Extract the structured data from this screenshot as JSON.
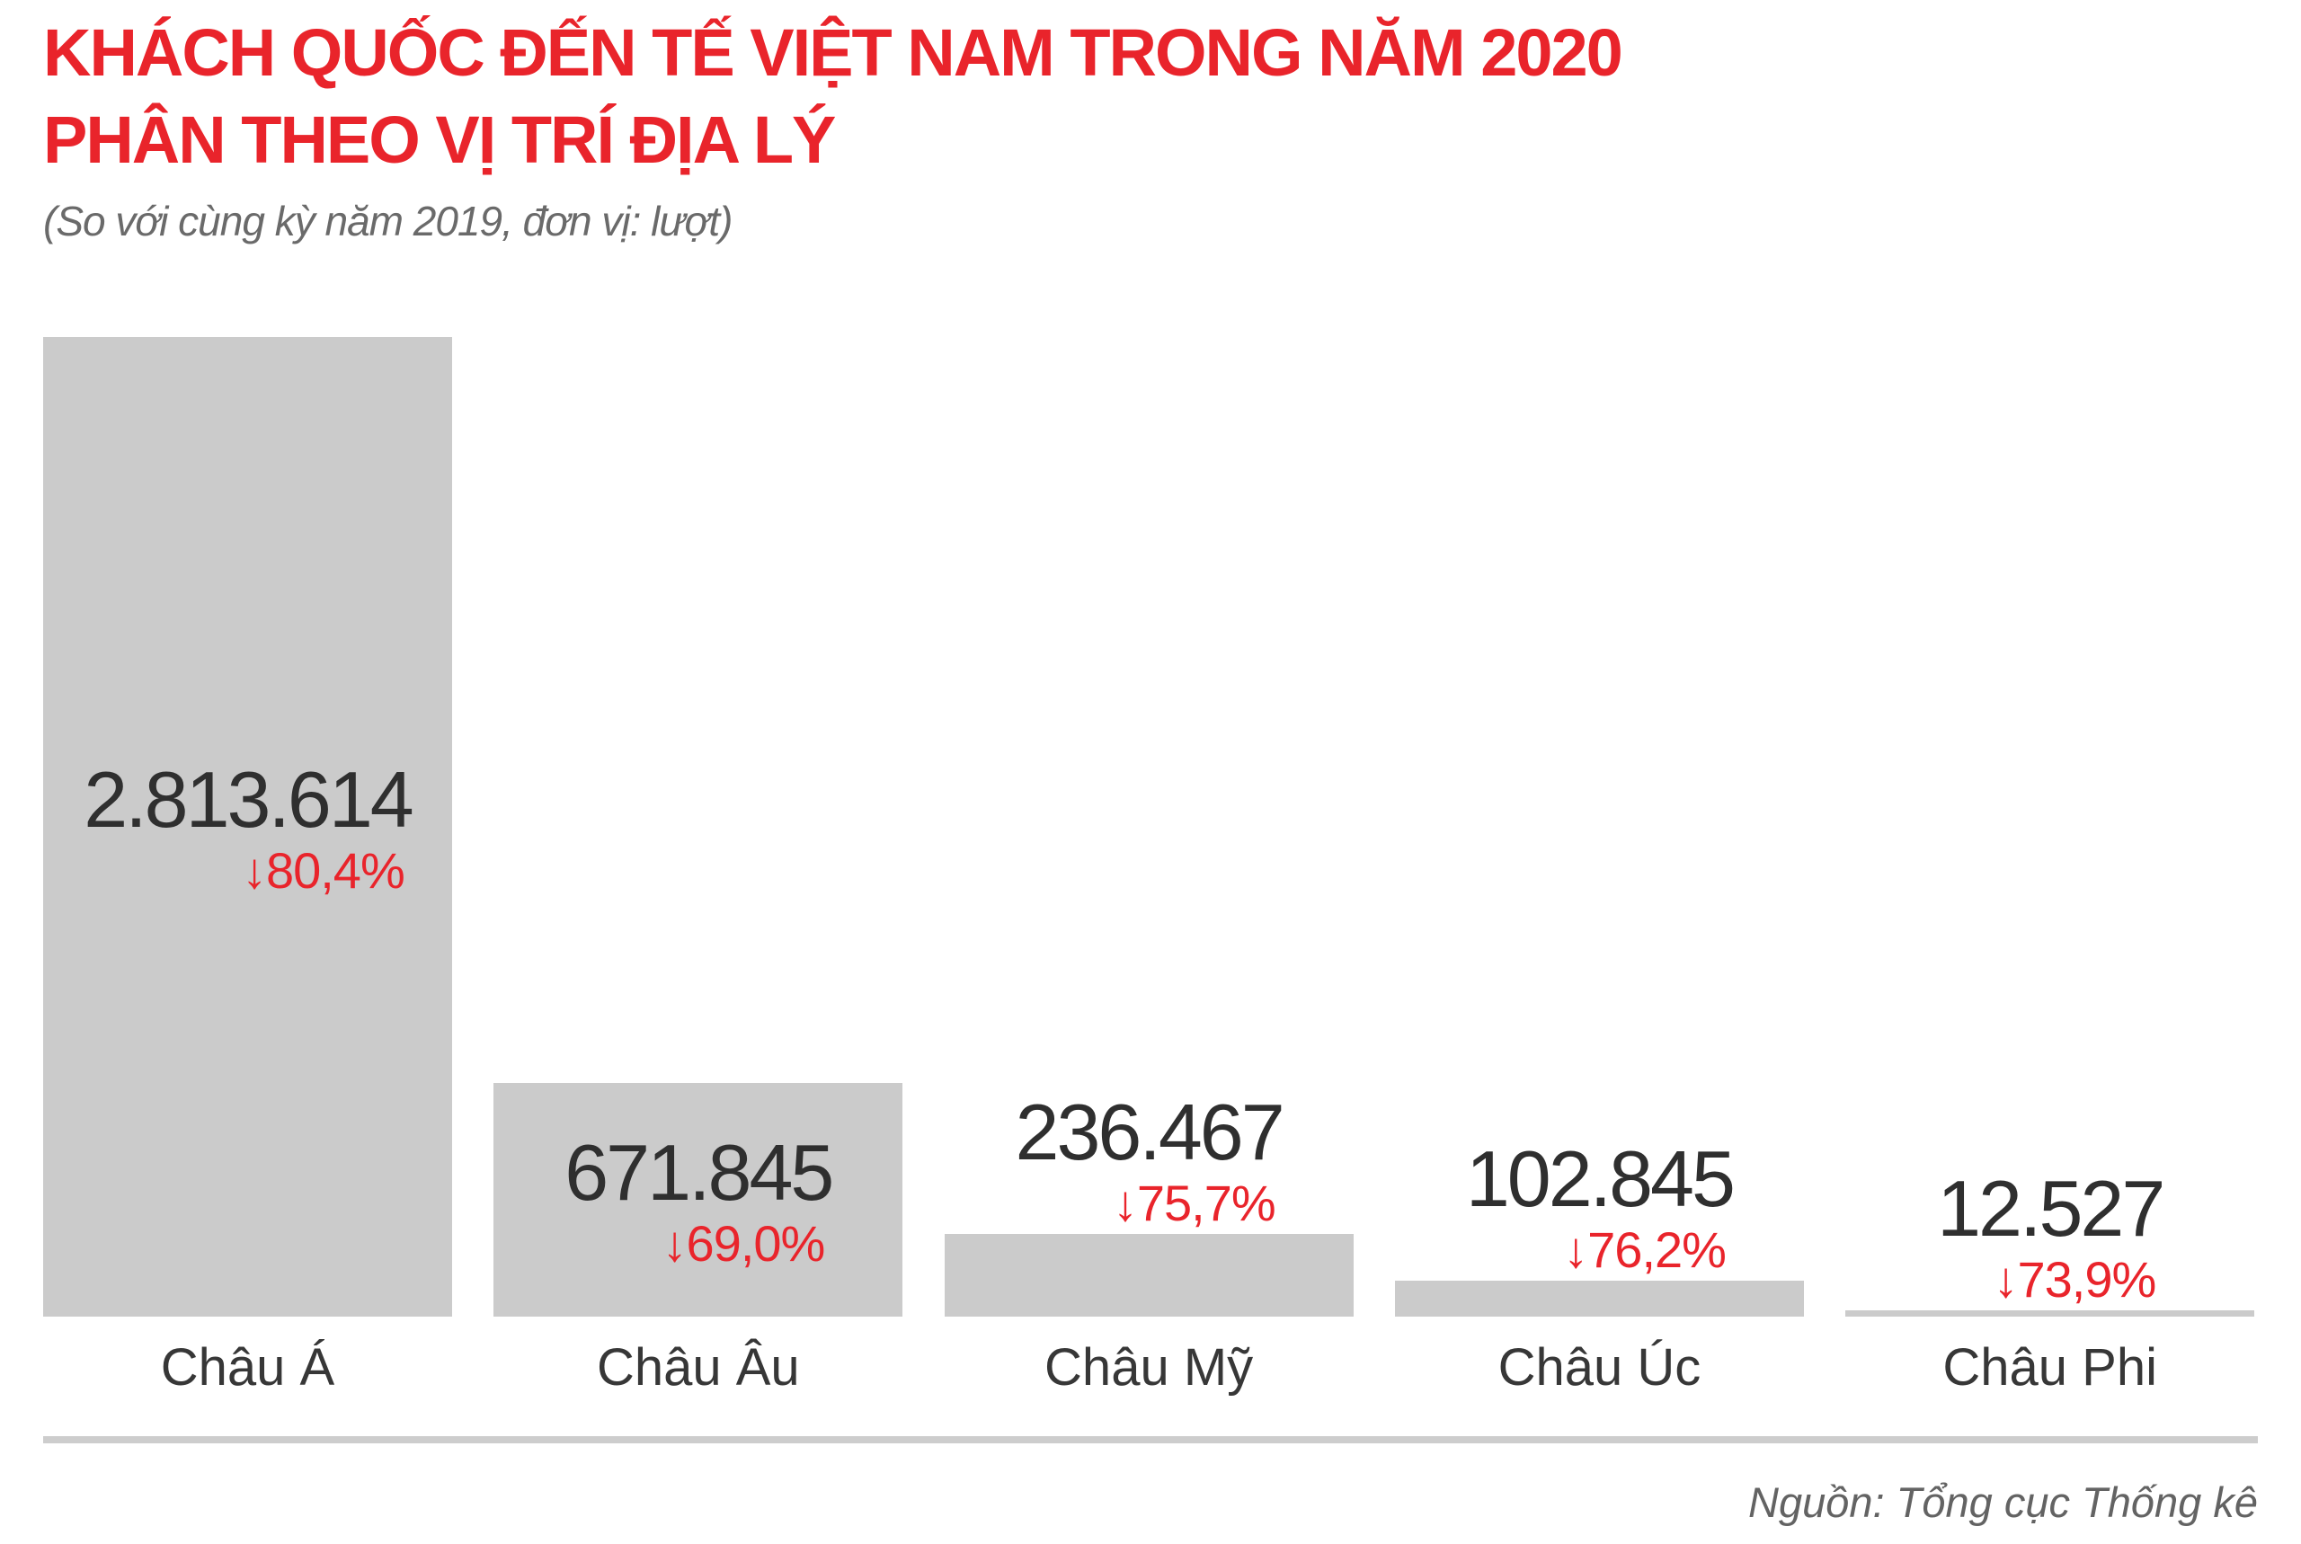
{
  "title": {
    "line1": "KHÁCH QUỐC ĐẾN TẾ VIỆT NAM TRONG NĂM 2020",
    "line2": "PHÂN THEO VỊ TRÍ ĐỊA LÝ",
    "subtitle": "(So với cùng kỳ năm 2019, đơn vị: lượt)"
  },
  "source": "Nguồn: Tổng cục Thống kê",
  "icons": {
    "down_arrow": "↓"
  },
  "colors": {
    "accent_red": "#e9242b",
    "bar_gray": "#cbcbcb",
    "value_text": "#2f2f2f",
    "category_text": "#373737",
    "muted_text": "#6a6a6a",
    "divider_gray": "#cdcdcd"
  },
  "chart_data": {
    "type": "bar",
    "title": "KHÁCH QUỐC ĐẾN TẾ VIỆT NAM TRONG NĂM 2020 PHÂN THEO VỊ TRÍ ĐỊA LÝ",
    "subtitle": "(So với cùng kỳ năm 2019, đơn vị: lượt)",
    "unit": "lượt",
    "categories": [
      "Châu Á",
      "Châu Âu",
      "Châu Mỹ",
      "Châu Úc",
      "Châu Phi"
    ],
    "values": [
      2813614,
      671845,
      236467,
      102845,
      12527
    ],
    "value_labels": [
      "2.813.614",
      "671.845",
      "236.467",
      "102.845",
      "12.527"
    ],
    "change_pct_vs_2019": [
      -80.4,
      -69.0,
      -75.7,
      -76.2,
      -73.9
    ],
    "change_labels": [
      "80,4%",
      "69,0%",
      "75,7%",
      "76,2%",
      "73,9%"
    ],
    "ylim": [
      0,
      2813614
    ],
    "grid": false,
    "legend": false,
    "bar_color": "#cbcbcb",
    "source": "Nguồn: Tổng cục Thống kê"
  }
}
